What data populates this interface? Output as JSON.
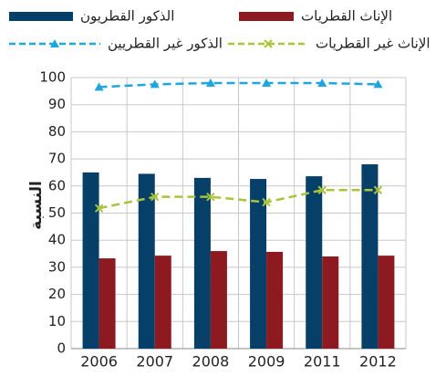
{
  "chart_data": {
    "type": "bar_line",
    "ylabel": "النسبة",
    "categories": [
      "2006",
      "2007",
      "2008",
      "2009",
      "2011",
      "2012"
    ],
    "series": [
      {
        "name": "الذكور القطريون",
        "color": "#063f68",
        "kind": "bar",
        "values": [
          65,
          64.5,
          63,
          62.6,
          63.6,
          68
        ]
      },
      {
        "name": "الإناث القطريات",
        "color": "#8c1a20",
        "kind": "bar",
        "values": [
          33.3,
          34.3,
          36,
          35.7,
          34,
          34.3
        ]
      },
      {
        "name": "الذكور غير القطريين",
        "color": "#1ea6e0",
        "kind": "line",
        "marker": "triangle",
        "values": [
          96.5,
          97.5,
          98,
          98,
          98,
          97.5
        ]
      },
      {
        "name": "الإناث غير القطريات",
        "color": "#a8c43a",
        "kind": "line",
        "marker": "x",
        "values": [
          51.8,
          56,
          56,
          54,
          58.5,
          58.5
        ]
      }
    ],
    "ylim": [
      0,
      100
    ],
    "yticks": [
      0,
      10,
      20,
      30,
      40,
      50,
      60,
      70,
      80,
      90,
      100
    ],
    "grid": true
  }
}
